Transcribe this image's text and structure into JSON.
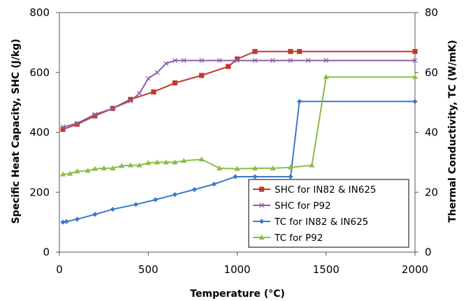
{
  "chart_data": {
    "type": "line",
    "xlabel": "Temperature (°C)",
    "ylabel": "Specific Heat Capacity, SHC (J/kg)",
    "y2label": "Thermal Conductivity, TC (W/mK)",
    "xlim": [
      0,
      2000
    ],
    "ylim": [
      0,
      800
    ],
    "y2lim": [
      0,
      80
    ],
    "xticks": [
      0,
      500,
      1000,
      1500,
      2000
    ],
    "yticks": [
      0,
      200,
      400,
      600,
      800
    ],
    "y2ticks": [
      0,
      20,
      40,
      60,
      80
    ],
    "grid": false,
    "legend_position": "bottom-right",
    "series": [
      {
        "name": "SHC for IN82 & IN625",
        "axis": "left",
        "color": "#c0392b",
        "marker": "square",
        "x": [
          20,
          100,
          200,
          300,
          400,
          530,
          650,
          800,
          950,
          1000,
          1100,
          1300,
          1350,
          2000
        ],
        "y": [
          410,
          427,
          455,
          480,
          510,
          535,
          565,
          590,
          620,
          645,
          670,
          670,
          670,
          670
        ]
      },
      {
        "name": "SHC for P92",
        "axis": "left",
        "color": "#8e5fa8",
        "marker": "x",
        "x": [
          20,
          100,
          200,
          300,
          400,
          450,
          500,
          550,
          600,
          650,
          700,
          800,
          900,
          1000,
          1100,
          1200,
          1300,
          1400,
          1500,
          2000
        ],
        "y": [
          418,
          430,
          460,
          480,
          505,
          530,
          580,
          600,
          630,
          640,
          640,
          640,
          640,
          640,
          640,
          640,
          640,
          640,
          640,
          640
        ]
      },
      {
        "name": "TC for IN82 & IN625",
        "axis": "right",
        "color": "#3c78c8",
        "marker": "diamond",
        "x": [
          20,
          40,
          100,
          200,
          300,
          430,
          540,
          650,
          760,
          870,
          990,
          1100,
          1300,
          1350,
          2000
        ],
        "y": [
          10,
          10.2,
          11,
          12.6,
          14.3,
          15.9,
          17.5,
          19.2,
          20.9,
          22.7,
          25.2,
          25.2,
          25.2,
          50.3,
          50.3
        ]
      },
      {
        "name": "TC for P92",
        "axis": "right",
        "color": "#8bbd47",
        "marker": "triangle",
        "x": [
          20,
          60,
          100,
          160,
          200,
          250,
          300,
          350,
          400,
          450,
          500,
          550,
          600,
          650,
          700,
          800,
          900,
          1000,
          1100,
          1200,
          1300,
          1420,
          1500,
          2000
        ],
        "y": [
          26,
          26.2,
          27,
          27.2,
          27.8,
          28,
          28,
          28.8,
          29,
          29,
          29.8,
          30,
          30,
          30,
          30.5,
          31,
          28,
          27.8,
          28,
          28,
          28.3,
          29,
          58.5,
          58.5
        ]
      }
    ]
  }
}
